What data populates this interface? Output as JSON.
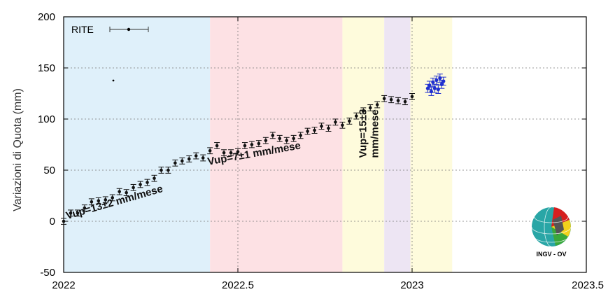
{
  "chart_data": {
    "type": "scatter",
    "ylabel": "Variazioni di Quota (mm)",
    "xlabel": "",
    "title": "",
    "xlim": [
      2022,
      2023.5
    ],
    "ylim": [
      -50,
      200
    ],
    "xticks": [
      "2022",
      "2022.5",
      "2023",
      "2023.5"
    ],
    "yticks": [
      "200",
      "150",
      "100",
      "50",
      "0",
      "-50"
    ],
    "grid": "dashed",
    "legend": {
      "label": "RITE",
      "placement": "top-left"
    },
    "periods": [
      {
        "start": 2022.0,
        "end": 2022.42,
        "color": "#dff0fa"
      },
      {
        "start": 2022.42,
        "end": 2022.8,
        "color": "#fde1e4"
      },
      {
        "start": 2022.8,
        "end": 2022.92,
        "color": "#fefbdc"
      },
      {
        "start": 2022.92,
        "end": 2022.995,
        "color": "#ede5f3"
      },
      {
        "start": 2022.995,
        "end": 2023.115,
        "color": "#fefbdc"
      }
    ],
    "rate_labels": [
      {
        "text": "Vup=13±2 mm/mese",
        "x": 2022.01,
        "y": 2,
        "angle": -16
      },
      {
        "text": "Vup=7±1 mm/mese",
        "x": 2022.415,
        "y": 55,
        "angle": -10
      },
      {
        "text": "Vup=15±3",
        "x": 2022.868,
        "y": 62,
        "angle": -90
      },
      {
        "text": "mm/mese",
        "x": 2022.903,
        "y": 62,
        "angle": -90
      }
    ],
    "series": [
      {
        "color": "#111111",
        "x": [
          2022.0,
          2022.02,
          2022.04,
          2022.06,
          2022.08,
          2022.1,
          2022.12,
          2022.14,
          2022.16,
          2022.18,
          2022.2,
          2022.22,
          2022.24,
          2022.26,
          2022.28,
          2022.3,
          2022.32,
          2022.34,
          2022.36,
          2022.38,
          2022.4,
          2022.42,
          2022.44,
          2022.46,
          2022.48,
          2022.5,
          2022.52,
          2022.54,
          2022.56,
          2022.58,
          2022.6,
          2022.62,
          2022.64,
          2022.66,
          2022.68,
          2022.7,
          2022.72,
          2022.74,
          2022.76,
          2022.78,
          2022.8,
          2022.82,
          2022.84,
          2022.86,
          2022.88,
          2022.9,
          2022.92,
          2022.94,
          2022.96,
          2022.98,
          2023.0
        ],
        "y": [
          0,
          8,
          8,
          13,
          19,
          20,
          21,
          23,
          29,
          28,
          33,
          36,
          38,
          42,
          50,
          50,
          57,
          59,
          61,
          64,
          62,
          69,
          74,
          67,
          67,
          68,
          74,
          75,
          76,
          79,
          84,
          81,
          79,
          81,
          84,
          88,
          89,
          93,
          91,
          97,
          94,
          98,
          103,
          108,
          111,
          114,
          120,
          119,
          118,
          117,
          122
        ],
        "err": [
          3,
          3,
          3,
          3,
          3,
          3,
          3,
          3,
          3,
          3,
          3,
          3,
          3,
          3,
          3,
          3,
          3,
          3,
          3,
          3,
          3,
          3,
          3,
          3,
          3,
          3,
          3,
          3,
          3,
          3,
          3,
          3,
          3,
          3,
          3,
          3,
          3,
          3,
          3,
          3,
          3,
          3,
          3,
          3,
          3,
          3,
          3,
          3,
          3,
          3,
          3
        ]
      },
      {
        "color": "#1f2fd0",
        "x": [
          2023.045,
          2023.05,
          2023.055,
          2023.06,
          2023.065,
          2023.07,
          2023.075,
          2023.08,
          2023.085,
          2023.09
        ],
        "y": [
          130,
          133,
          127,
          136,
          130,
          138,
          129,
          140,
          134,
          137
        ],
        "err": [
          4,
          4,
          4,
          4,
          4,
          4,
          4,
          4,
          4,
          4
        ]
      }
    ]
  },
  "logo": {
    "label": "INGV - OV"
  }
}
